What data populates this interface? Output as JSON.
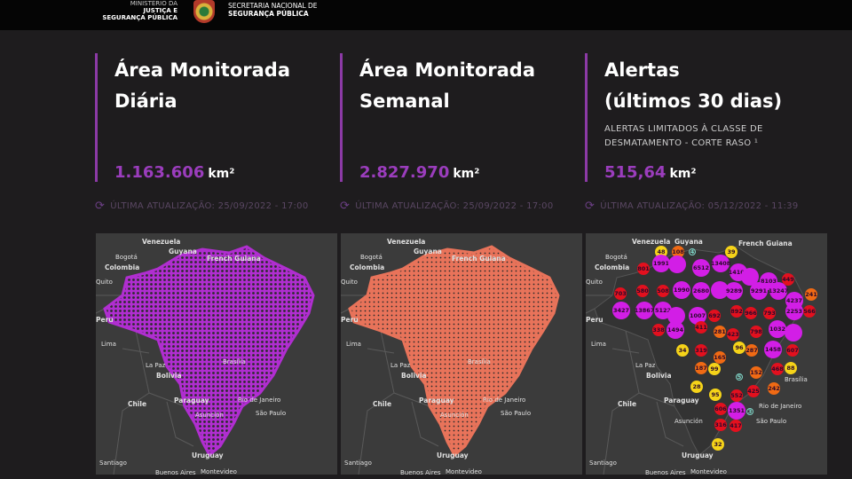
{
  "header": {
    "ministry": [
      "MINISTÉRIO DA",
      "JUSTIÇA E",
      "SEGURANÇA PÚBLICA"
    ],
    "secretariat": [
      "SECRETARIA NACIONAL DE",
      "SEGURANÇA PÚBLICA"
    ]
  },
  "cards": [
    {
      "title": [
        "Área Monitorada",
        "Diária"
      ],
      "subtitle": "",
      "value": "1.163.606",
      "unit": "km²",
      "updated": "ÚLTIMA ATUALIZAÇÃO: 25/09/2022 - 17:00"
    },
    {
      "title": [
        "Área Monitorada",
        "Semanal"
      ],
      "subtitle": "",
      "value": "2.827.970",
      "unit": "km²",
      "updated": "ÚLTIMA ATUALIZAÇÃO: 25/09/2022 - 17:00"
    },
    {
      "title": [
        "Alertas",
        "(últimos 30 dias)"
      ],
      "subtitle": "ALERTAS LIMITADOS À CLASSE DE DESMATAMENTO - CORTE RASO ¹",
      "value": "515,64",
      "unit": "km²",
      "updated": "ÚLTIMA ATUALIZAÇÃO: 05/12/2022 - 11:39"
    }
  ],
  "map_labels": [
    "Venezuela",
    "Bogotá",
    "Colombia",
    "Guyana",
    "French Guiana",
    "Quito",
    "Peru",
    "Lima",
    "La Paz",
    "Bolivia",
    "Brasília",
    "Paraguay",
    "Chile",
    "Asunción",
    "Rio de Janeiro",
    "São Paulo",
    "Uruguay",
    "Santiago",
    "Buenos Aires",
    "Montevideo"
  ],
  "colors": {
    "accent": "#9b3dbd",
    "magenta": "#d21ee6",
    "red": "#e3101e",
    "orange": "#f06a14",
    "yellow": "#f5d319",
    "teal": "#7fd6c8",
    "daily_fill": "#b02ed0",
    "weekly_fill": "#e8735a"
  },
  "clusters": [
    {
      "label": "48",
      "level": "yellow"
    },
    {
      "label": "108",
      "level": "orange"
    },
    {
      "label": "4",
      "level": "teal"
    },
    {
      "label": "39",
      "level": "yellow"
    },
    {
      "label": "1991",
      "level": "magenta"
    },
    {
      "label": "",
      "level": "magenta"
    },
    {
      "label": "801",
      "level": "red"
    },
    {
      "label": "6512",
      "level": "magenta"
    },
    {
      "label": "13408",
      "level": "magenta"
    },
    {
      "label": "14105",
      "level": "magenta"
    },
    {
      "label": "",
      "level": "magenta"
    },
    {
      "label": "8103",
      "level": "magenta"
    },
    {
      "label": "449",
      "level": "red"
    },
    {
      "label": "703",
      "level": "red"
    },
    {
      "label": "580",
      "level": "red"
    },
    {
      "label": "508",
      "level": "red"
    },
    {
      "label": "1990",
      "level": "magenta"
    },
    {
      "label": "2680",
      "level": "magenta"
    },
    {
      "label": "",
      "level": "magenta"
    },
    {
      "label": "9289",
      "level": "magenta"
    },
    {
      "label": "9291",
      "level": "magenta"
    },
    {
      "label": "13247",
      "level": "magenta"
    },
    {
      "label": "241",
      "level": "orange"
    },
    {
      "label": "4237",
      "level": "magenta"
    },
    {
      "label": "3427",
      "level": "magenta"
    },
    {
      "label": "13867",
      "level": "magenta"
    },
    {
      "label": "5122",
      "level": "magenta"
    },
    {
      "label": "",
      "level": "magenta"
    },
    {
      "label": "1007",
      "level": "magenta"
    },
    {
      "label": "692",
      "level": "red"
    },
    {
      "label": "892",
      "level": "red"
    },
    {
      "label": "966",
      "level": "red"
    },
    {
      "label": "793",
      "level": "red"
    },
    {
      "label": "2253",
      "level": "magenta"
    },
    {
      "label": "566",
      "level": "red"
    },
    {
      "label": "338",
      "level": "red"
    },
    {
      "label": "1494",
      "level": "magenta"
    },
    {
      "label": "411",
      "level": "red"
    },
    {
      "label": "281",
      "level": "orange"
    },
    {
      "label": "423",
      "level": "red"
    },
    {
      "label": "798",
      "level": "red"
    },
    {
      "label": "1032",
      "level": "magenta"
    },
    {
      "label": "",
      "level": "magenta"
    },
    {
      "label": "34",
      "level": "yellow"
    },
    {
      "label": "319",
      "level": "red"
    },
    {
      "label": "96",
      "level": "yellow"
    },
    {
      "label": "287",
      "level": "orange"
    },
    {
      "label": "1458",
      "level": "magenta"
    },
    {
      "label": "607",
      "level": "red"
    },
    {
      "label": "165",
      "level": "orange"
    },
    {
      "label": "187",
      "level": "orange"
    },
    {
      "label": "99",
      "level": "yellow"
    },
    {
      "label": "152",
      "level": "orange"
    },
    {
      "label": "468",
      "level": "red"
    },
    {
      "label": "88",
      "level": "yellow"
    },
    {
      "label": "5",
      "level": "teal"
    },
    {
      "label": "28",
      "level": "yellow"
    },
    {
      "label": "95",
      "level": "yellow"
    },
    {
      "label": "552",
      "level": "red"
    },
    {
      "label": "425",
      "level": "red"
    },
    {
      "label": "242",
      "level": "orange"
    },
    {
      "label": "606",
      "level": "red"
    },
    {
      "label": "1351",
      "level": "magenta"
    },
    {
      "label": "3",
      "level": "teal"
    },
    {
      "label": "316",
      "level": "red"
    },
    {
      "label": "417",
      "level": "red"
    },
    {
      "label": "32",
      "level": "yellow"
    }
  ]
}
